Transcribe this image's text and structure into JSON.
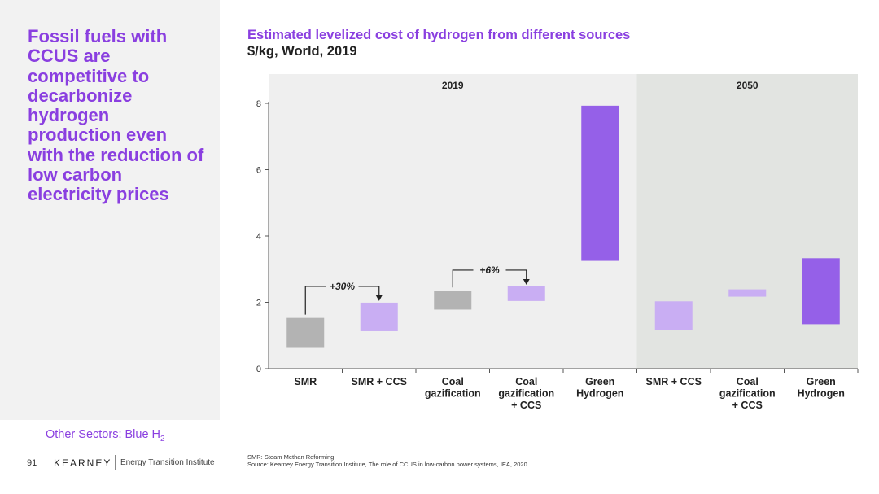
{
  "sidebar": {
    "headline": "Fossil fuels with CCUS are competitive to decarbonize hydrogen production even with the reduction of low carbon electricity prices",
    "section_label": "Other Sectors: Blue H",
    "section_label_sub": "2"
  },
  "footer": {
    "page_number": "91",
    "logo": "KEARNEY",
    "logo_sub": "Energy Transition Institute",
    "note1": "SMR: Steam Methan Reforming",
    "note2": "Source: Kearney Energy Transition Institute, The role of CCUS in low-carbon power systems, IEA, 2020"
  },
  "colors": {
    "accent": "#8a3fe0",
    "grey_bar": "#b3b3b3",
    "light_purple_bar": "#c9aef3",
    "purple_bar": "#9560e8",
    "panel_2019": "#efefef",
    "panel_2050": "#e2e4e1"
  },
  "chart_data": {
    "type": "bar",
    "title": "Estimated levelized cost of hydrogen from different sources",
    "subtitle": "$/kg, World, 2019",
    "ylim": [
      0,
      8
    ],
    "yticks": [
      0,
      2,
      4,
      6,
      8
    ],
    "groups": [
      {
        "label": "2019",
        "start": 0,
        "end": 5
      },
      {
        "label": "2050",
        "start": 5,
        "end": 8
      }
    ],
    "categories": [
      "SMR",
      "SMR + CCS",
      "Coal gazification",
      "Coal gazification + CCS",
      "Green Hydrogen",
      "SMR + CCS",
      "Coal gazification + CCS",
      "Green Hydrogen"
    ],
    "category_lines": [
      [
        "SMR"
      ],
      [
        "SMR + CCS"
      ],
      [
        "Coal",
        "gazification"
      ],
      [
        "Coal",
        "gazification",
        "+ CCS"
      ],
      [
        "Green",
        "Hydrogen"
      ],
      [
        "SMR + CCS"
      ],
      [
        "Coal",
        "gazification",
        "+ CCS"
      ],
      [
        "Green",
        "Hydrogen"
      ]
    ],
    "ranges": [
      [
        0.65,
        1.53
      ],
      [
        1.13,
        1.99
      ],
      [
        1.78,
        2.35
      ],
      [
        2.04,
        2.48
      ],
      [
        3.25,
        7.93
      ],
      [
        1.17,
        2.03
      ],
      [
        2.17,
        2.39
      ],
      [
        1.34,
        3.33
      ]
    ],
    "bar_colors": [
      "grey_bar",
      "light_purple_bar",
      "grey_bar",
      "light_purple_bar",
      "purple_bar",
      "light_purple_bar",
      "light_purple_bar",
      "purple_bar"
    ],
    "annotations": [
      {
        "label": "+30%",
        "from": 0,
        "to": 1
      },
      {
        "label": "+6%",
        "from": 2,
        "to": 3
      }
    ]
  }
}
